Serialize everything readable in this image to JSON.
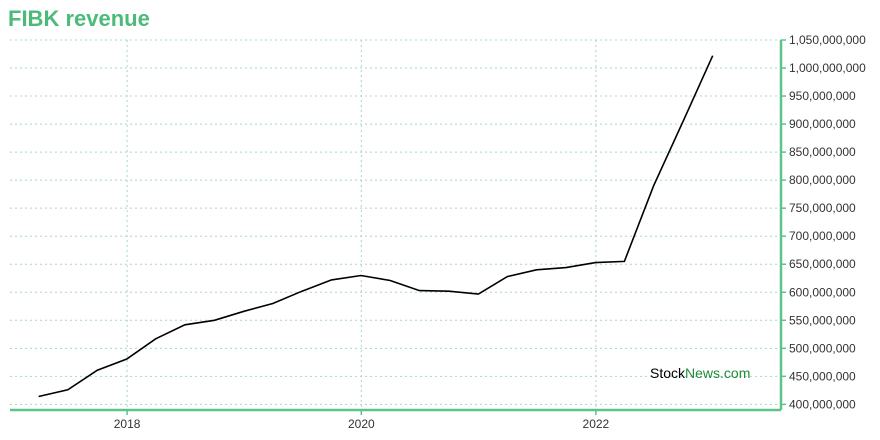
{
  "chart_data": {
    "type": "line",
    "title": "FIBK revenue",
    "xlabel": "",
    "ylabel": "",
    "x": [
      "2017-03-31",
      "2017-06-30",
      "2017-09-30",
      "2017-12-31",
      "2018-03-31",
      "2018-06-30",
      "2018-09-30",
      "2018-12-31",
      "2019-03-31",
      "2019-06-30",
      "2019-09-30",
      "2019-12-31",
      "2020-03-31",
      "2020-06-30",
      "2020-09-30",
      "2020-12-31",
      "2021-03-31",
      "2021-06-30",
      "2021-09-30",
      "2021-12-31",
      "2022-03-31",
      "2022-06-30",
      "2022-09-30",
      "2022-12-31"
    ],
    "series": [
      {
        "values": [
          414000000,
          426000000,
          461000000,
          481000000,
          517000000,
          542000000,
          550000000,
          566000000,
          580000000,
          602000000,
          622000000,
          630000000,
          621000000,
          603000000,
          602000000,
          597000000,
          628000000,
          640000000,
          644000000,
          653000000,
          655000000,
          790000000,
          905000000,
          1022000000
        ]
      }
    ],
    "xlim": [
      "2017-01-01",
      "2023-08-01"
    ],
    "ylim": [
      390000000,
      1050000000
    ],
    "x_ticks": [
      "2018",
      "2020",
      "2022"
    ],
    "y_ticks": [
      "400,000,000",
      "450,000,000",
      "500,000,000",
      "550,000,000",
      "600,000,000",
      "650,000,000",
      "700,000,000",
      "750,000,000",
      "800,000,000",
      "850,000,000",
      "900,000,000",
      "950,000,000",
      "1,000,000,000",
      "1,050,000,000"
    ],
    "grid": true,
    "colors": {
      "title": "#4cbb7a",
      "axis": "#5cc489",
      "grid": "#a8d8bd",
      "line": "#000000"
    }
  },
  "watermark": {
    "part1": "Stock",
    "part2": "News.com"
  }
}
